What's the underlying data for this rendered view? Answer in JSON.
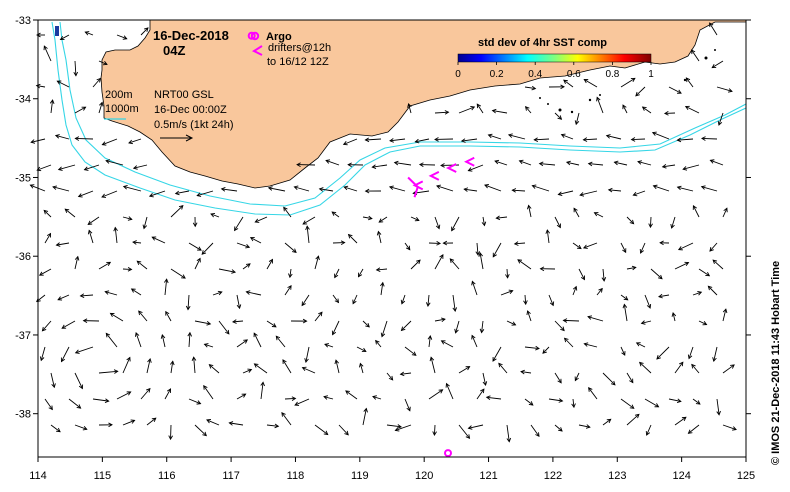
{
  "title": {
    "date": "16-Dec-2018",
    "time": "04Z"
  },
  "legend": {
    "argo_label": "Argo",
    "drifters_label": "drifters@12h",
    "drifters_sub": "to 16/12 12Z",
    "contour_200": "200m",
    "contour_1000": "1000m",
    "product": "NRT00 GSL",
    "product_date": "16-Dec 00:00Z",
    "scale": "0.5m/s (1kt 24h)"
  },
  "colorbar": {
    "title": "std dev of 4hr SST comp",
    "ticks": [
      "0",
      "0.2",
      "0.4",
      "0.6",
      "0.8",
      "1"
    ]
  },
  "axes": {
    "lon_ticks": [
      "114",
      "115",
      "116",
      "117",
      "118",
      "119",
      "120",
      "121",
      "122",
      "123",
      "124",
      "125"
    ],
    "lat_ticks": [
      "-33",
      "-34",
      "-35",
      "-36",
      "-37",
      "-38"
    ],
    "lon_range": [
      114,
      125
    ],
    "lat_range": [
      -38.55,
      -33
    ]
  },
  "credit": "© IMOS 21-Dec-2018 11:43 Hobart Time",
  "colors": {
    "land": "#f9c79c",
    "isobath": "#36d6e6",
    "argo": "#ff00ff",
    "drifter": "#ff00ff"
  },
  "argo_positions": [
    {
      "lon": 117.32,
      "lat": -33.2
    },
    {
      "lon": 120.37,
      "lat": -38.5
    }
  ],
  "drifter_marks": [
    {
      "lon": 119.9,
      "lat": -35.1
    },
    {
      "lon": 120.15,
      "lat": -34.98
    },
    {
      "lon": 120.42,
      "lat": -34.88
    },
    {
      "lon": 120.7,
      "lat": -34.8
    }
  ]
}
